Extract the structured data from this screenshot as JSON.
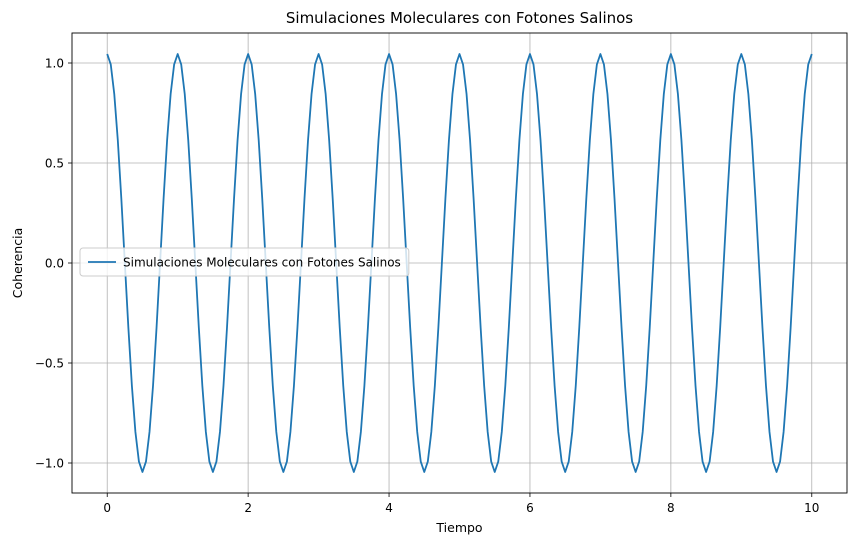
{
  "chart_data": {
    "type": "line",
    "title": "Simulaciones Moleculares con Fotones Salinos",
    "xlabel": "Tiempo",
    "ylabel": "Coherencia",
    "xlim": [
      -0.5,
      10.5
    ],
    "ylim": [
      -1.15,
      1.15
    ],
    "xticks": [
      0,
      2,
      4,
      6,
      8,
      10
    ],
    "xtick_labels": [
      "0",
      "2",
      "4",
      "6",
      "8",
      "10"
    ],
    "yticks": [
      -1.0,
      -0.5,
      0.0,
      0.5,
      1.0
    ],
    "ytick_labels": [
      "−1.0",
      "−0.5",
      "0.0",
      "0.5",
      "1.0"
    ],
    "grid": true,
    "legend": {
      "position": "center-left"
    },
    "series": [
      {
        "name": "Simulaciones Moleculares con Fotones Salinos",
        "color": "#1f77b4",
        "x": [
          0.0,
          0.05,
          0.1,
          0.15,
          0.2,
          0.25,
          0.3,
          0.35,
          0.4,
          0.45,
          0.5,
          0.55,
          0.6,
          0.65,
          0.7,
          0.75,
          0.8,
          0.85,
          0.9,
          0.95,
          1.0,
          1.05,
          1.1,
          1.15,
          1.2,
          1.25,
          1.3,
          1.35,
          1.4,
          1.45,
          1.5,
          1.55,
          1.6,
          1.65,
          1.7,
          1.75,
          1.8,
          1.85,
          1.9,
          1.95,
          2.0,
          2.05,
          2.1,
          2.15,
          2.2,
          2.25,
          2.3,
          2.35,
          2.4,
          2.45,
          2.5,
          2.55,
          2.6,
          2.65,
          2.7,
          2.75,
          2.8,
          2.85,
          2.9,
          2.95,
          3.0,
          3.05,
          3.1,
          3.15,
          3.2,
          3.25,
          3.3,
          3.35,
          3.4,
          3.45,
          3.5,
          3.55,
          3.6,
          3.65,
          3.7,
          3.75,
          3.8,
          3.85,
          3.9,
          3.95,
          4.0,
          4.05,
          4.1,
          4.15,
          4.2,
          4.25,
          4.3,
          4.35,
          4.4,
          4.45,
          4.5,
          4.55,
          4.6,
          4.65,
          4.7,
          4.75,
          4.8,
          4.85,
          4.9,
          4.95,
          5.0,
          5.05,
          5.1,
          5.15,
          5.2,
          5.25,
          5.3,
          5.35,
          5.4,
          5.45,
          5.5,
          5.55,
          5.6,
          5.65,
          5.7,
          5.75,
          5.8,
          5.85,
          5.9,
          5.95,
          6.0,
          6.05,
          6.1,
          6.15,
          6.2,
          6.25,
          6.3,
          6.35,
          6.4,
          6.45,
          6.5,
          6.55,
          6.6,
          6.65,
          6.7,
          6.75,
          6.8,
          6.85,
          6.9,
          6.95,
          7.0,
          7.05,
          7.1,
          7.15,
          7.2,
          7.25,
          7.3,
          7.35,
          7.4,
          7.45,
          7.5,
          7.55,
          7.6,
          7.65,
          7.7,
          7.75,
          7.8,
          7.85,
          7.9,
          7.95,
          8.0,
          8.05,
          8.1,
          8.15,
          8.2,
          8.25,
          8.3,
          8.35,
          8.4,
          8.45,
          8.5,
          8.55,
          8.6,
          8.65,
          8.7,
          8.75,
          8.8,
          8.85,
          8.9,
          8.95,
          9.0,
          9.05,
          9.1,
          9.15,
          9.2,
          9.25,
          9.3,
          9.35,
          9.4,
          9.45,
          9.5,
          9.55,
          9.6,
          9.65,
          9.7,
          9.75,
          9.8,
          9.85,
          9.9,
          9.95,
          10.0
        ],
        "y": [
          1.045,
          0.993,
          0.845,
          0.614,
          0.323,
          0.0,
          -0.323,
          -0.614,
          -0.845,
          -0.993,
          -1.045,
          -0.993,
          -0.845,
          -0.614,
          -0.323,
          0.0,
          0.323,
          0.614,
          0.845,
          0.993,
          1.045,
          0.993,
          0.845,
          0.614,
          0.323,
          0.0,
          -0.323,
          -0.614,
          -0.845,
          -0.993,
          -1.045,
          -0.993,
          -0.845,
          -0.614,
          -0.323,
          0.0,
          0.323,
          0.614,
          0.845,
          0.993,
          1.045,
          0.993,
          0.845,
          0.614,
          0.323,
          0.0,
          -0.323,
          -0.614,
          -0.845,
          -0.993,
          -1.045,
          -0.993,
          -0.845,
          -0.614,
          -0.323,
          0.0,
          0.323,
          0.614,
          0.845,
          0.993,
          1.045,
          0.993,
          0.845,
          0.614,
          0.323,
          0.0,
          -0.323,
          -0.614,
          -0.845,
          -0.993,
          -1.045,
          -0.993,
          -0.845,
          -0.614,
          -0.323,
          0.0,
          0.323,
          0.614,
          0.845,
          0.993,
          1.045,
          0.993,
          0.845,
          0.614,
          0.323,
          0.0,
          -0.323,
          -0.614,
          -0.845,
          -0.993,
          -1.045,
          -0.993,
          -0.845,
          -0.614,
          -0.323,
          0.0,
          0.323,
          0.614,
          0.845,
          0.993,
          1.045,
          0.993,
          0.845,
          0.614,
          0.323,
          0.0,
          -0.323,
          -0.614,
          -0.845,
          -0.993,
          -1.045,
          -0.993,
          -0.845,
          -0.614,
          -0.323,
          0.0,
          0.323,
          0.614,
          0.845,
          0.993,
          1.045,
          0.993,
          0.845,
          0.614,
          0.323,
          0.0,
          -0.323,
          -0.614,
          -0.845,
          -0.993,
          -1.045,
          -0.993,
          -0.845,
          -0.614,
          -0.323,
          0.0,
          0.323,
          0.614,
          0.845,
          0.993,
          1.045,
          0.993,
          0.845,
          0.614,
          0.323,
          0.0,
          -0.323,
          -0.614,
          -0.845,
          -0.993,
          -1.045,
          -0.993,
          -0.845,
          -0.614,
          -0.323,
          0.0,
          0.323,
          0.614,
          0.845,
          0.993,
          1.045,
          0.993,
          0.845,
          0.614,
          0.323,
          0.0,
          -0.323,
          -0.614,
          -0.845,
          -0.993,
          -1.045,
          -0.993,
          -0.845,
          -0.614,
          -0.323,
          0.0,
          0.323,
          0.614,
          0.845,
          0.993,
          1.045,
          0.993,
          0.845,
          0.614,
          0.323,
          0.0,
          -0.323,
          -0.614,
          -0.845,
          -0.993,
          -1.045,
          -0.993,
          -0.845,
          -0.614,
          -0.323,
          0.0,
          0.323,
          0.614,
          0.845,
          0.993,
          1.045
        ]
      }
    ]
  }
}
